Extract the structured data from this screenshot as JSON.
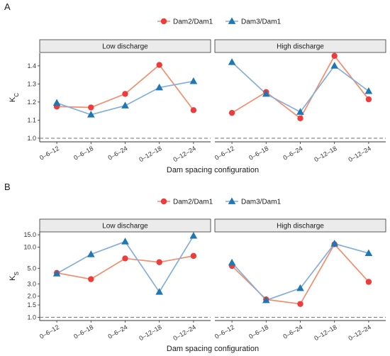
{
  "chart_data": [
    {
      "panel_label": "A",
      "type": "line",
      "ylabel_main": "K",
      "ylabel_sub": "C",
      "xlabel": "Dam spacing configuration",
      "categories": [
        "0–6–12",
        "0–6–18",
        "0–6–24",
        "0–12–18",
        "0–12–24"
      ],
      "y_scale": "linear",
      "ylim": [
        0.98,
        1.47
      ],
      "yticks": [
        1.0,
        1.1,
        1.2,
        1.3,
        1.4
      ],
      "ytick_labels": [
        "1.0",
        "1.1",
        "1.2",
        "1.3",
        "1.4"
      ],
      "reference_line": 1.0,
      "legend": {
        "position": "top",
        "entries": [
          "Dam2/Dam1",
          "Dam3/Dam1"
        ]
      },
      "facets": [
        {
          "title": "Low discharge",
          "series": [
            {
              "name": "Dam2/Dam1",
              "values": [
                1.175,
                1.17,
                1.245,
                1.405,
                1.155
              ]
            },
            {
              "name": "Dam3/Dam1",
              "values": [
                1.195,
                1.13,
                1.18,
                1.28,
                1.315
              ]
            }
          ]
        },
        {
          "title": "High discharge",
          "series": [
            {
              "name": "Dam2/Dam1",
              "values": [
                1.14,
                1.255,
                1.11,
                1.455,
                1.215
              ]
            },
            {
              "name": "Dam3/Dam1",
              "values": [
                1.42,
                1.245,
                1.145,
                1.4,
                1.26
              ]
            }
          ]
        }
      ]
    },
    {
      "panel_label": "B",
      "type": "line",
      "ylabel_main": "K",
      "ylabel_sub": "S",
      "xlabel": "Dam spacing configuration",
      "categories": [
        "0–6–12",
        "0–6–18",
        "0–6–24",
        "0–12–18",
        "0–12–24"
      ],
      "y_scale": "log",
      "ylim": [
        0.9,
        16.5
      ],
      "yticks": [
        1.0,
        1.5,
        2.0,
        3.0,
        5.0,
        10.0,
        15.0
      ],
      "ytick_labels": [
        "1.0",
        "1.5",
        "2.0",
        "3.0",
        "5.0",
        "10.0",
        "15.0"
      ],
      "reference_line": 1.0,
      "legend": {
        "position": "top",
        "entries": [
          "Dam2/Dam1",
          "Dam3/Dam1"
        ]
      },
      "facets": [
        {
          "title": "Low discharge",
          "series": [
            {
              "name": "Dam2/Dam1",
              "values": [
                4.3,
                3.5,
                6.9,
                6.1,
                7.5
              ]
            },
            {
              "name": "Dam3/Dam1",
              "values": [
                4.2,
                7.9,
                12.0,
                2.3,
                14.5
              ]
            }
          ]
        },
        {
          "title": "High discharge",
          "series": [
            {
              "name": "Dam2/Dam1",
              "values": [
                5.4,
                1.8,
                1.55,
                11.0,
                3.2
              ]
            },
            {
              "name": "Dam3/Dam1",
              "values": [
                6.0,
                1.75,
                2.6,
                11.2,
                8.2
              ]
            }
          ]
        }
      ]
    }
  ],
  "colors": {
    "dam2_line": "#f28e6d",
    "dam2_marker": "#ee3b3b",
    "dam3_line": "#85aedb",
    "dam3_marker": "#1f78b4",
    "reference_line": "#7f7f7f",
    "strip_fill": "#ebebeb"
  },
  "marker_shapes": {
    "Dam2/Dam1": "circle",
    "Dam3/Dam1": "triangle"
  }
}
